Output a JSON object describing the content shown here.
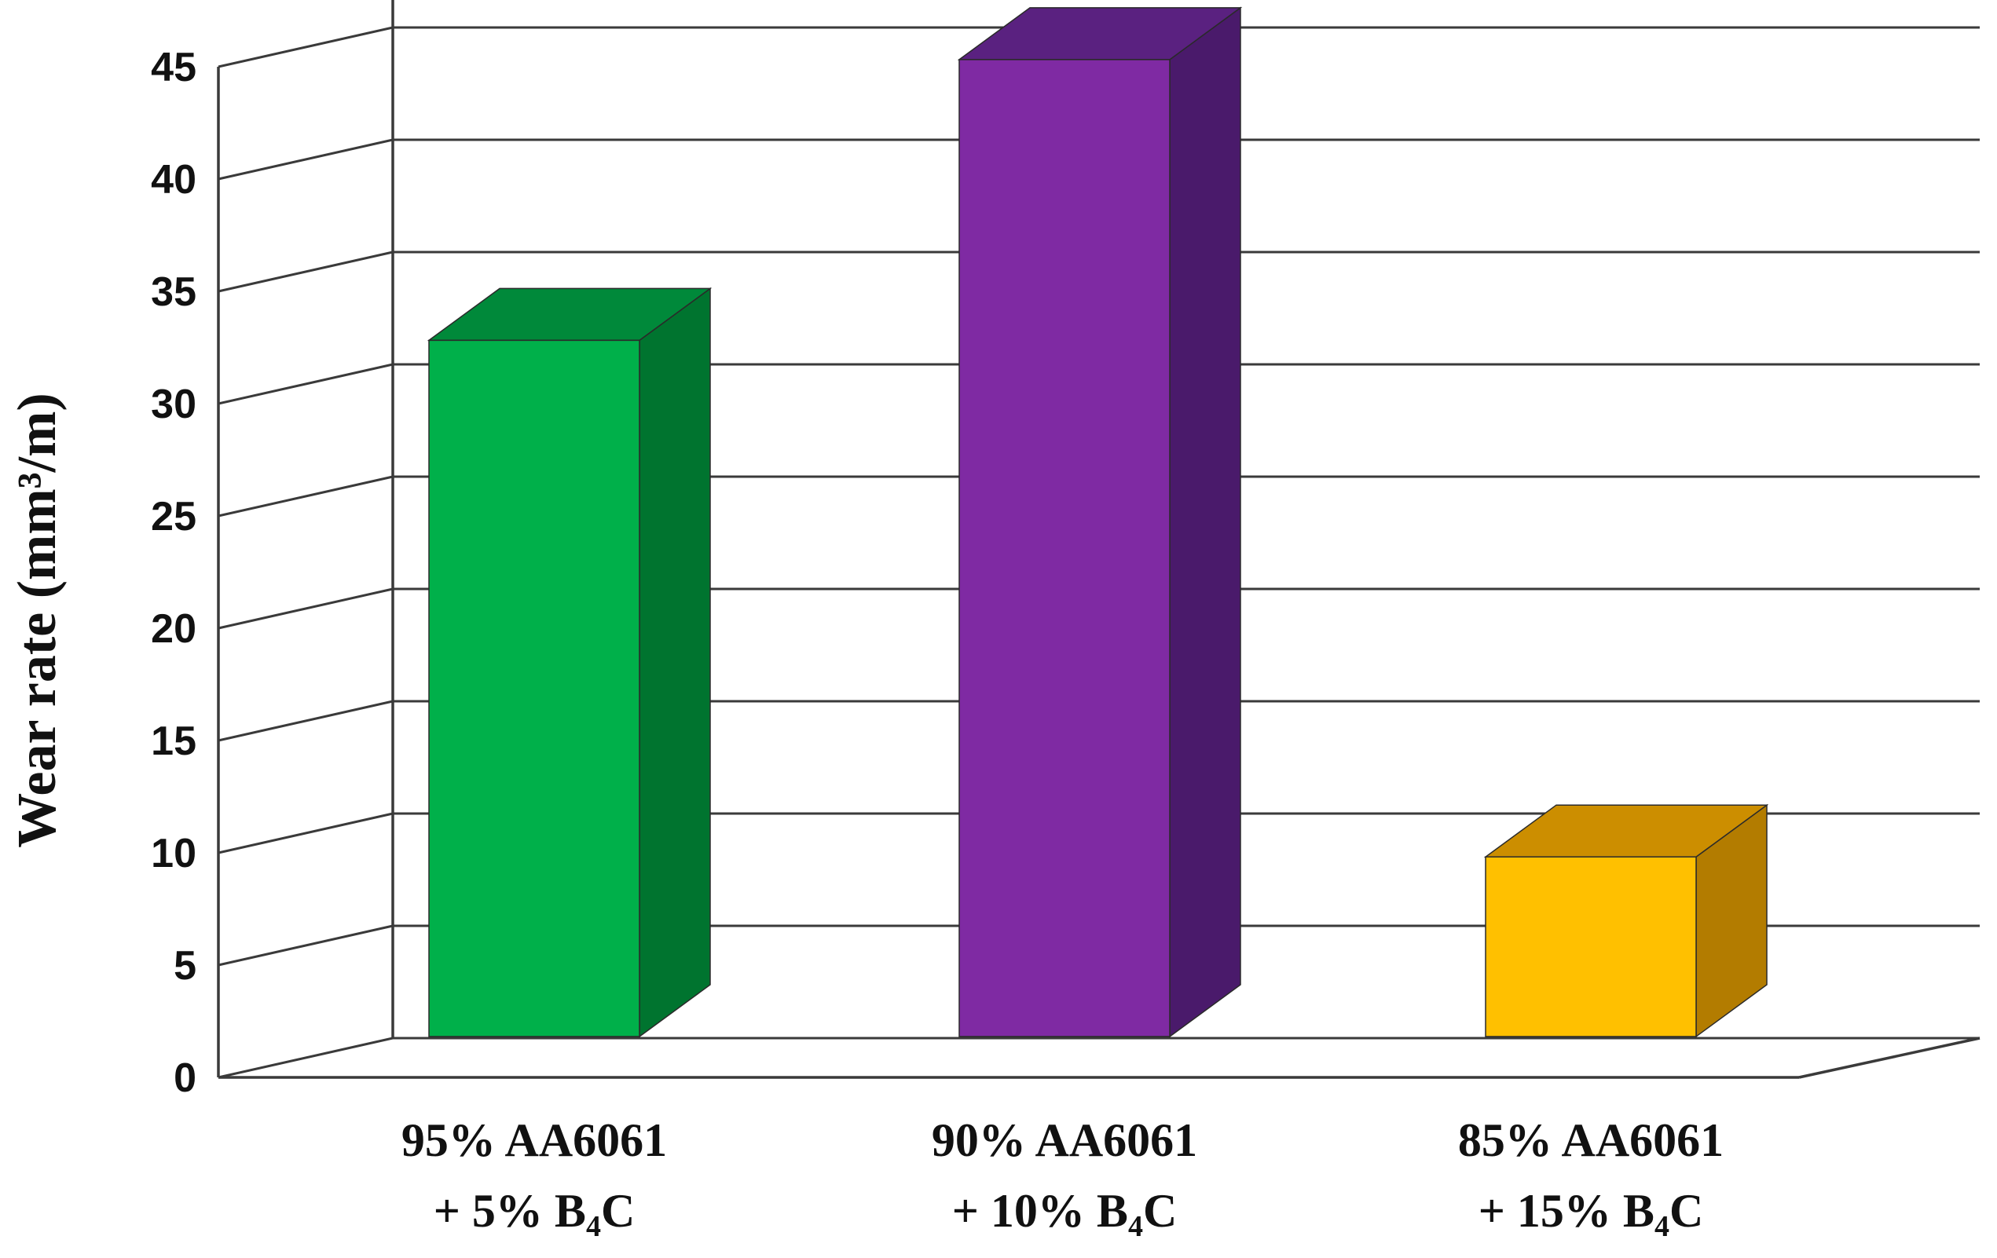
{
  "chart_data": {
    "type": "bar",
    "style": "3d-column",
    "title": "",
    "xlabel": "",
    "ylabel": "Wear rate (mm³/m)",
    "ylim": [
      0,
      45
    ],
    "yticks": [
      0,
      5,
      10,
      15,
      20,
      25,
      30,
      35,
      40,
      45
    ],
    "grid": true,
    "categories": [
      {
        "line1": "95% AA6061",
        "line2_pre": "+ 5% B",
        "line2_sub": "4",
        "line2_post": "C"
      },
      {
        "line1": "90% AA6061",
        "line2_pre": "+ 10% B",
        "line2_sub": "4",
        "line2_post": "C"
      },
      {
        "line1": "85% AA6061",
        "line2_pre": "+ 15% B",
        "line2_sub": "4",
        "line2_post": "C"
      }
    ],
    "values": [
      31,
      43.5,
      8
    ],
    "colors": [
      {
        "front": "#00b04a",
        "top": "#00893a",
        "side": "#00742f"
      },
      {
        "front": "#7f2aa3",
        "top": "#5a2180",
        "side": "#4a1a6b"
      },
      {
        "front": "#ffc000",
        "top": "#cc8e00",
        "side": "#b37c00"
      }
    ]
  }
}
